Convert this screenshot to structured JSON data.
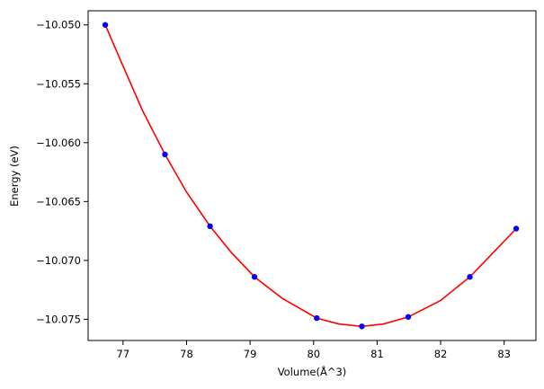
{
  "chart_data": {
    "type": "scatter",
    "title": "",
    "xlabel": "Volume(Å^3)",
    "ylabel": "Energy (eV)",
    "xlim": [
      76.45,
      83.5
    ],
    "ylim": [
      -10.0768,
      -10.0488
    ],
    "xticks": [
      77,
      78,
      79,
      80,
      81,
      82,
      83
    ],
    "xtick_labels": [
      "77",
      "78",
      "79",
      "80",
      "81",
      "82",
      "83"
    ],
    "yticks": [
      -10.05,
      -10.055,
      -10.06,
      -10.065,
      -10.07,
      -10.075
    ],
    "ytick_labels": [
      "−10.050",
      "−10.055",
      "−10.060",
      "−10.065",
      "−10.070",
      "−10.075"
    ],
    "grid": false,
    "series": [
      {
        "kind": "scatter",
        "color": "#0000ff",
        "x": [
          76.72,
          77.66,
          78.37,
          79.07,
          80.05,
          80.76,
          81.49,
          82.46,
          83.19
        ],
        "y": [
          -10.05,
          -10.061,
          -10.0671,
          -10.0714,
          -10.0749,
          -10.0756,
          -10.0748,
          -10.0714,
          -10.0673
        ]
      },
      {
        "kind": "line",
        "color": "#ff0000",
        "x": [
          76.72,
          77.0,
          77.3,
          77.66,
          78.0,
          78.37,
          78.7,
          79.07,
          79.5,
          80.05,
          80.4,
          80.76,
          81.1,
          81.49,
          82.0,
          82.46,
          82.8,
          83.19
        ],
        "y": [
          -10.05,
          -10.0535,
          -10.0572,
          -10.061,
          -10.0642,
          -10.0671,
          -10.0693,
          -10.0714,
          -10.0732,
          -10.0749,
          -10.0754,
          -10.0756,
          -10.0754,
          -10.0748,
          -10.0734,
          -10.0714,
          -10.0695,
          -10.0673
        ]
      }
    ]
  }
}
